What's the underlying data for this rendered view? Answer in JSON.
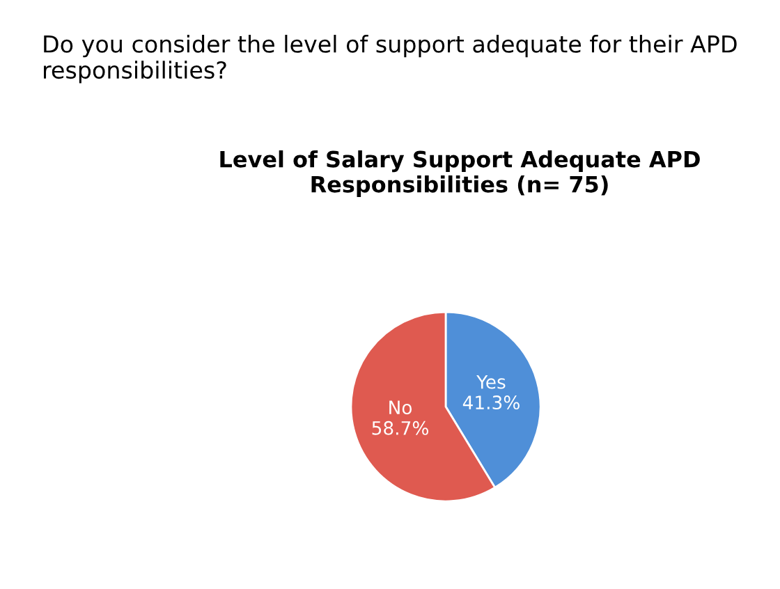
{
  "chart_data": {
    "type": "pie",
    "title": "Do you consider the level of support adequate for their APD responsibilities?",
    "subtitle": "Level of Salary Support Adequate APD Responsibilities (n= 75)",
    "categories": [
      "Yes",
      "No"
    ],
    "values": [
      41.3,
      58.7
    ],
    "colors": [
      "#4f8fd8",
      "#df5a50"
    ],
    "value_labels": [
      "41.3%",
      "58.7%"
    ],
    "legend": false
  }
}
